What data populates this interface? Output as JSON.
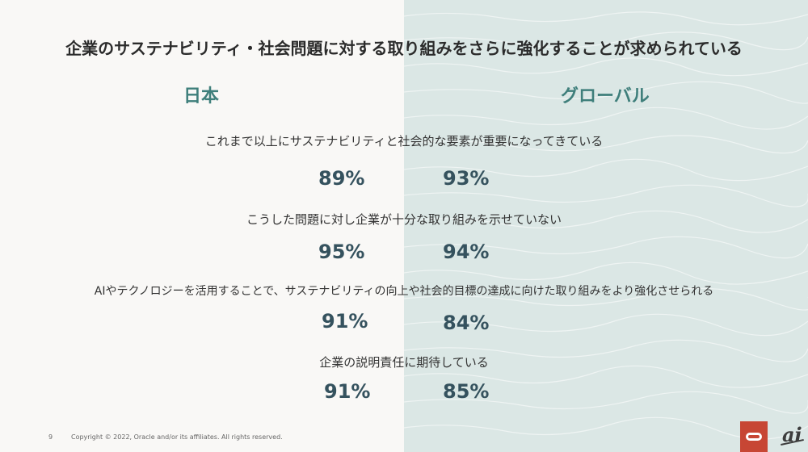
{
  "title": "企業のサステナビリティ・社会問題に対する取り組みをさらに強化することが求められている",
  "columns": {
    "japan": "日本",
    "global": "グローバル"
  },
  "items": [
    {
      "question": "これまで以上にサステナビリティと社会的な要素が重要になってきている",
      "japan": "89%",
      "global": "93%"
    },
    {
      "question": "こうした問題に対し企業が十分な取り組みを示せていない",
      "japan": "95%",
      "global": "94%"
    },
    {
      "question": "AIやテクノロジーを活用することで、サステナビリティの向上や社会的目標の達成に向けた取り組みをより強化させられる",
      "japan": "91%",
      "global": "84%"
    },
    {
      "question": "企業の説明責任に期待している",
      "japan": "91%",
      "global": "85%"
    }
  ],
  "footer": {
    "page_number": "9",
    "copyright": "Copyright © 2022, Oracle and/or its affiliates. All rights reserved."
  },
  "logos": {
    "oracle": "oracle-logo",
    "ai": "ai"
  },
  "colors": {
    "heading": "#3f7f7b",
    "value": "#35525e",
    "panel": "#dbe7e5",
    "brand": "#c74634"
  }
}
